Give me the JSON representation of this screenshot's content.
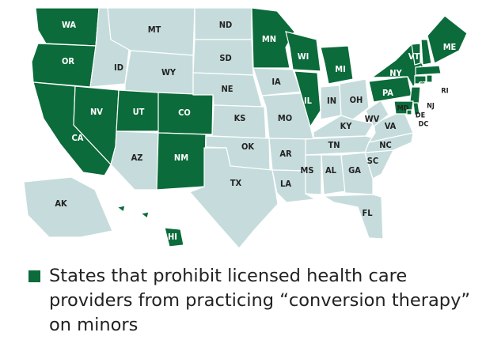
{
  "map": {
    "states": [
      {
        "label": "WA",
        "prohibited": true
      },
      {
        "label": "OR",
        "prohibited": true
      },
      {
        "label": "CA",
        "prohibited": true
      },
      {
        "label": "NV",
        "prohibited": true
      },
      {
        "label": "ID",
        "prohibited": false
      },
      {
        "label": "MT",
        "prohibited": false
      },
      {
        "label": "WY",
        "prohibited": false
      },
      {
        "label": "UT",
        "prohibited": true
      },
      {
        "label": "CO",
        "prohibited": true
      },
      {
        "label": "AZ",
        "prohibited": false
      },
      {
        "label": "NM",
        "prohibited": true
      },
      {
        "label": "ND",
        "prohibited": false
      },
      {
        "label": "SD",
        "prohibited": false
      },
      {
        "label": "NE",
        "prohibited": false
      },
      {
        "label": "KS",
        "prohibited": false
      },
      {
        "label": "OK",
        "prohibited": false
      },
      {
        "label": "TX",
        "prohibited": false
      },
      {
        "label": "MN",
        "prohibited": true
      },
      {
        "label": "IA",
        "prohibited": false
      },
      {
        "label": "MO",
        "prohibited": false
      },
      {
        "label": "AR",
        "prohibited": false
      },
      {
        "label": "LA",
        "prohibited": false
      },
      {
        "label": "WI",
        "prohibited": true
      },
      {
        "label": "IL",
        "prohibited": true
      },
      {
        "label": "MI",
        "prohibited": true
      },
      {
        "label": "IN",
        "prohibited": false
      },
      {
        "label": "OH",
        "prohibited": false
      },
      {
        "label": "KY",
        "prohibited": false
      },
      {
        "label": "TN",
        "prohibited": false
      },
      {
        "label": "MS",
        "prohibited": false
      },
      {
        "label": "AL",
        "prohibited": false
      },
      {
        "label": "GA",
        "prohibited": false
      },
      {
        "label": "FL",
        "prohibited": false
      },
      {
        "label": "SC",
        "prohibited": false
      },
      {
        "label": "NC",
        "prohibited": false
      },
      {
        "label": "VA",
        "prohibited": false
      },
      {
        "label": "WV",
        "prohibited": false
      },
      {
        "label": "PA",
        "prohibited": true
      },
      {
        "label": "NY",
        "prohibited": true
      },
      {
        "label": "VT",
        "prohibited": true
      },
      {
        "label": "NH",
        "prohibited": true
      },
      {
        "label": "ME",
        "prohibited": true
      },
      {
        "label": "MA",
        "prohibited": true
      },
      {
        "label": "CT",
        "prohibited": true
      },
      {
        "label": "RI",
        "prohibited": true
      },
      {
        "label": "NJ",
        "prohibited": true
      },
      {
        "label": "MD",
        "prohibited": true
      },
      {
        "label": "DE",
        "prohibited": true
      },
      {
        "label": "DC",
        "prohibited": true
      },
      {
        "label": "AK",
        "prohibited": false
      },
      {
        "label": "HI",
        "prohibited": true
      }
    ],
    "prohibited_color": "#0b6b3a",
    "other_color": "#c6dcdc",
    "legend": "States that prohibit licensed health care providers from practicing “conversion therapy” on minors"
  }
}
